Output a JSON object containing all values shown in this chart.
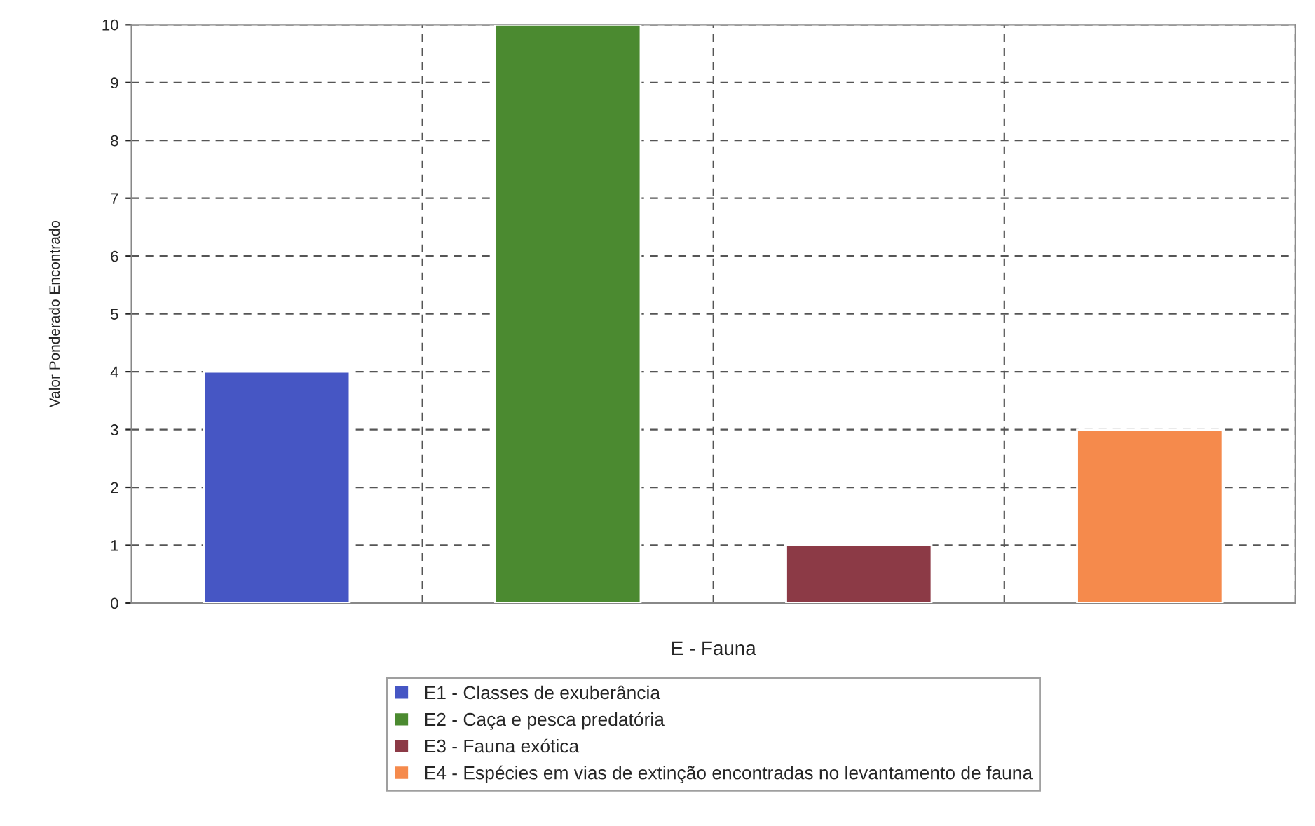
{
  "chart_data": {
    "type": "bar",
    "xlabel": "E - Fauna",
    "ylabel": "Valor Ponderado Encontrado",
    "categories": [
      null,
      null,
      null,
      null
    ],
    "series": [
      {
        "name": "E1 - Classes de exuberância",
        "color": "#4656c4",
        "values": [
          4,
          null,
          null,
          null
        ]
      },
      {
        "name": "E2 - Caça e pesca predatória",
        "color": "#4b8a30",
        "values": [
          null,
          10,
          null,
          null
        ]
      },
      {
        "name": "E3 - Fauna exótica",
        "color": "#8c3a46",
        "values": [
          null,
          null,
          1,
          null
        ]
      },
      {
        "name": "E4 - Espécies em vias de extinção encontradas no levantamento de fauna",
        "color": "#f58a4c",
        "values": [
          null,
          null,
          null,
          3
        ]
      }
    ],
    "ylim": [
      0,
      10
    ],
    "yticks": [
      0,
      1,
      2,
      3,
      4,
      5,
      6,
      7,
      8,
      9,
      10
    ],
    "grid": true,
    "legend": "bottom"
  }
}
